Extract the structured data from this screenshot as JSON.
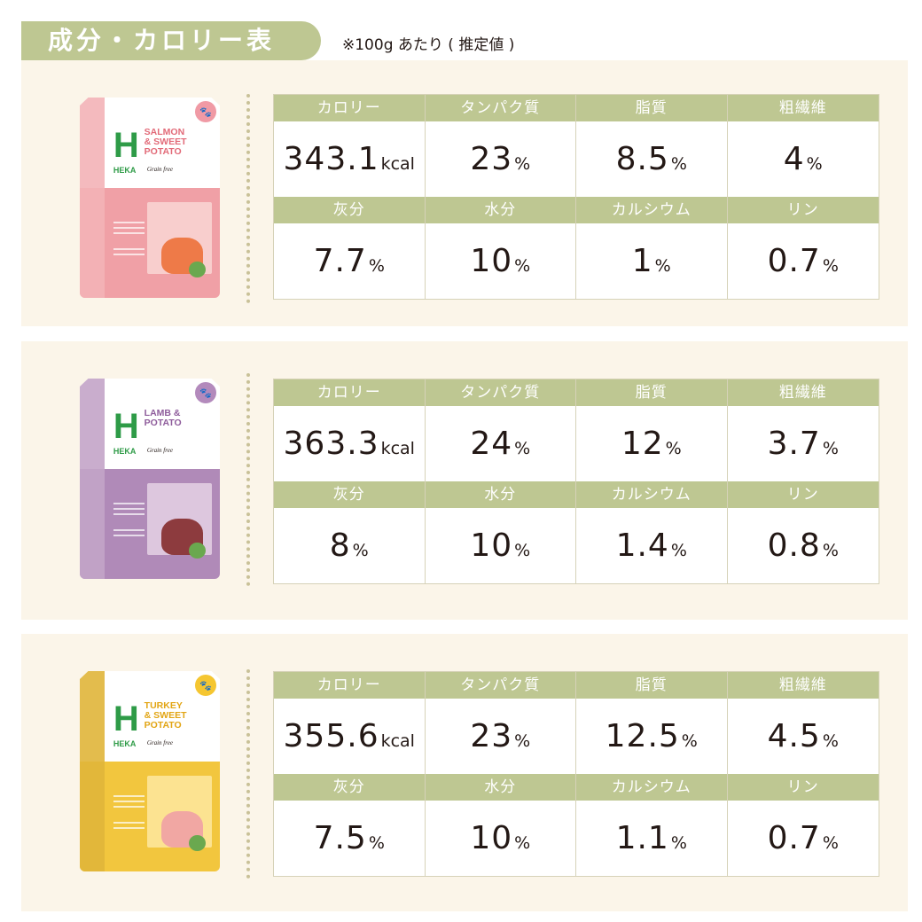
{
  "header": {
    "title": "成分・カロリー表",
    "note": "※100g あたり ( 推定値 )"
  },
  "labels": {
    "calorie": "カロリー",
    "protein": "タンパク質",
    "fat": "脂質",
    "fiber": "粗繊維",
    "ash": "灰分",
    "moisture": "水分",
    "calcium": "カルシウム",
    "phosphorus": "リン"
  },
  "units": {
    "kcal": "kcal",
    "percent": "%"
  },
  "products": [
    {
      "brand": "HEKA",
      "logo_letter": "H",
      "name": "SALMON\n& SWEET\nPOTATO",
      "tagline": "Grain free",
      "color": "#f0a0a6",
      "values": {
        "calorie": "343.1",
        "protein": "23",
        "fat": "8.5",
        "fiber": "4",
        "ash": "7.7",
        "moisture": "10",
        "calcium": "1",
        "phosphorus": "0.7"
      }
    },
    {
      "brand": "HEKA",
      "logo_letter": "H",
      "name": "LAMB &\nPOTATO",
      "tagline": "Grain free",
      "color": "#b08ab8",
      "values": {
        "calorie": "363.3",
        "protein": "24",
        "fat": "12",
        "fiber": "3.7",
        "ash": "8",
        "moisture": "10",
        "calcium": "1.4",
        "phosphorus": "0.8"
      }
    },
    {
      "brand": "HEKA",
      "logo_letter": "H",
      "name": "TURKEY\n& SWEET\nPOTATO",
      "tagline": "Grain free",
      "color": "#f2c63e",
      "values": {
        "calorie": "355.6",
        "protein": "23",
        "fat": "12.5",
        "fiber": "4.5",
        "ash": "7.5",
        "moisture": "10",
        "calcium": "1.1",
        "phosphorus": "0.7"
      }
    }
  ]
}
